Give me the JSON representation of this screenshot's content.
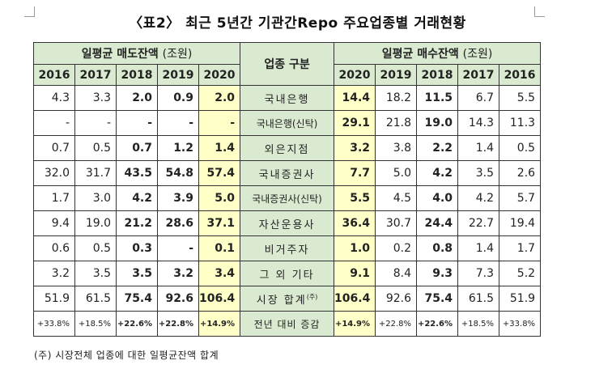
{
  "title": "〈표2〉 최근 5년간 기관간Repo 주요업종별 거래현황",
  "sell_header": {
    "label": "일평균 매도잔액",
    "unit": "(조원)"
  },
  "buy_header": {
    "label": "일평균 매수잔액",
    "unit": "(조원)"
  },
  "category_header": "업종 구분",
  "sell_years": [
    "2016",
    "2017",
    "2018",
    "2019",
    "2020"
  ],
  "buy_years": [
    "2020",
    "2019",
    "2018",
    "2017",
    "2016"
  ],
  "rows": [
    {
      "category": "국내은행",
      "sell": [
        "4.3",
        "3.3",
        "2.0",
        "0.9",
        "2.0"
      ],
      "buy": [
        "14.4",
        "18.2",
        "11.5",
        "6.7",
        "5.5"
      ]
    },
    {
      "category": "국내은행(신탁)",
      "sell": [
        "-",
        "-",
        "-",
        "-",
        "-"
      ],
      "buy": [
        "29.1",
        "21.8",
        "19.0",
        "14.3",
        "11.3"
      ]
    },
    {
      "category": "외은지점",
      "sell": [
        "0.7",
        "0.5",
        "0.7",
        "1.2",
        "1.4"
      ],
      "buy": [
        "3.2",
        "3.8",
        "2.2",
        "1.4",
        "0.5"
      ]
    },
    {
      "category": "국내증권사",
      "sell": [
        "32.0",
        "31.7",
        "43.5",
        "54.8",
        "57.4"
      ],
      "buy": [
        "7.7",
        "5.0",
        "4.2",
        "3.5",
        "2.6"
      ]
    },
    {
      "category": "국내증권사(신탁)",
      "sell": [
        "1.7",
        "3.0",
        "4.2",
        "3.9",
        "5.0"
      ],
      "buy": [
        "5.5",
        "4.5",
        "4.0",
        "4.2",
        "5.7"
      ]
    },
    {
      "category": "자산운용사",
      "sell": [
        "9.4",
        "19.0",
        "21.2",
        "28.6",
        "37.1"
      ],
      "buy": [
        "36.4",
        "30.7",
        "24.4",
        "22.7",
        "19.4"
      ]
    },
    {
      "category": "비거주자",
      "sell": [
        "0.6",
        "0.5",
        "0.3",
        "-",
        "0.1"
      ],
      "buy": [
        "1.0",
        "0.2",
        "0.8",
        "1.4",
        "1.7"
      ]
    },
    {
      "category": "그 외 기타",
      "sell": [
        "3.2",
        "3.5",
        "3.5",
        "3.2",
        "3.4"
      ],
      "buy": [
        "9.1",
        "8.4",
        "9.3",
        "7.3",
        "5.2"
      ]
    }
  ],
  "total": {
    "category": "시장 합계",
    "sup": "(주)",
    "sell": [
      "51.9",
      "61.5",
      "75.4",
      "92.6",
      "106.4"
    ],
    "buy": [
      "106.4",
      "92.6",
      "75.4",
      "61.5",
      "51.9"
    ]
  },
  "rate": {
    "category": "전년 대비 증감",
    "sell": [
      "+33.8%",
      "+18.5%",
      "+22.6%",
      "+22.8%",
      "+14.9%"
    ],
    "buy": [
      "+14.9%",
      "+22.8%",
      "+22.6%",
      "+18.5%",
      "+33.8%"
    ]
  },
  "footnote": "(주) 시장전체 업종에 대한 일평균잔액 합계"
}
